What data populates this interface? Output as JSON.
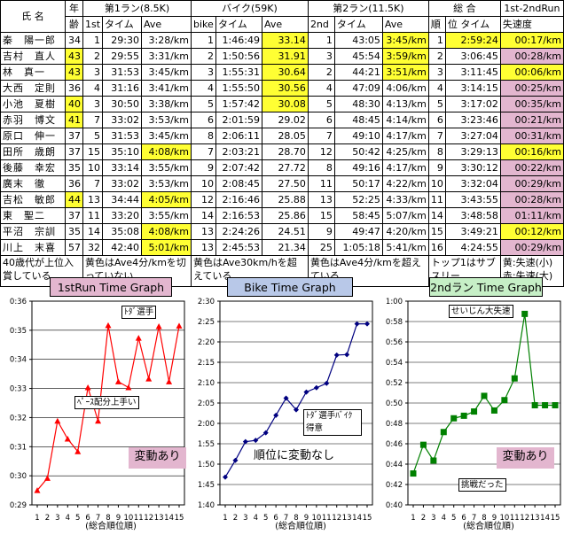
{
  "table": {
    "head1": {
      "name": "氏 名",
      "age1": "年",
      "run1": "第1ラン(8.5K)",
      "bike": "バイク(59K)",
      "run2": "第2ラン(11.5K)",
      "total": "総 合",
      "diff": "1st-2ndRun"
    },
    "head2": {
      "age2": "齢",
      "r1rank": "1st",
      "r1time": "タイム",
      "r1ave": "Ave",
      "brank": "bike",
      "btime": "タイム",
      "bave": "Ave",
      "r2rank": "2nd",
      "r2time": "タイム",
      "r2ave": "Ave",
      "trank": "順",
      "ttime": "位 タイム",
      "dlabel": "失速度"
    },
    "rows": [
      {
        "name": "秦　陽一郎",
        "age": "34",
        "r1rank": "1",
        "r1time": "29:30",
        "r1ave": "3:28/km",
        "brank": "1",
        "btime": "1:46:49",
        "bave": "33.14",
        "r2rank": "1",
        "r2time": "43:05",
        "r2ave": "3:45/km",
        "trank": "1",
        "ttime": "2:59:24",
        "diff": "00:17/km"
      },
      {
        "name": "吉村　直人",
        "age": "43",
        "r1rank": "2",
        "r1time": "29:55",
        "r1ave": "3:31/km",
        "brank": "2",
        "btime": "1:50:56",
        "bave": "31.91",
        "r2rank": "3",
        "r2time": "45:54",
        "r2ave": "3:59/km",
        "trank": "2",
        "ttime": "3:06:45",
        "diff": "00:28/km"
      },
      {
        "name": "林　真一",
        "age": "43",
        "r1rank": "3",
        "r1time": "31:53",
        "r1ave": "3:45/km",
        "brank": "3",
        "btime": "1:55:31",
        "bave": "30.64",
        "r2rank": "2",
        "r2time": "44:21",
        "r2ave": "3:51/km",
        "trank": "3",
        "ttime": "3:11:45",
        "diff": "00:06/km"
      },
      {
        "name": "大西　定則",
        "age": "36",
        "r1rank": "4",
        "r1time": "31:16",
        "r1ave": "3:41/km",
        "brank": "4",
        "btime": "1:55:50",
        "bave": "30.56",
        "r2rank": "4",
        "r2time": "47:09",
        "r2ave": "4:06/km",
        "trank": "4",
        "ttime": "3:14:15",
        "diff": "00:25/km"
      },
      {
        "name": "小池　夏樹",
        "age": "40",
        "r1rank": "3",
        "r1time": "30:50",
        "r1ave": "3:38/km",
        "brank": "5",
        "btime": "1:57:42",
        "bave": "30.08",
        "r2rank": "5",
        "r2time": "48:30",
        "r2ave": "4:13/km",
        "trank": "5",
        "ttime": "3:17:02",
        "diff": "00:35/km"
      },
      {
        "name": "赤羽　博文",
        "age": "41",
        "r1rank": "7",
        "r1time": "33:02",
        "r1ave": "3:53/km",
        "brank": "6",
        "btime": "2:01:59",
        "bave": "29.02",
        "r2rank": "6",
        "r2time": "48:45",
        "r2ave": "4:14/km",
        "trank": "6",
        "ttime": "3:23:46",
        "diff": "00:21/km"
      },
      {
        "name": "原口　伸一",
        "age": "37",
        "r1rank": "5",
        "r1time": "31:53",
        "r1ave": "3:45/km",
        "brank": "8",
        "btime": "2:06:11",
        "bave": "28.05",
        "r2rank": "7",
        "r2time": "49:10",
        "r2ave": "4:17/km",
        "trank": "7",
        "ttime": "3:27:04",
        "diff": "00:31/km"
      },
      {
        "name": "田所　歳朗",
        "age": "37",
        "r1rank": "15",
        "r1time": "35:10",
        "r1ave": "4:08/km",
        "brank": "7",
        "btime": "2:03:21",
        "bave": "28.70",
        "r2rank": "12",
        "r2time": "50:42",
        "r2ave": "4:25/km",
        "trank": "8",
        "ttime": "3:29:13",
        "diff": "00:16/km"
      },
      {
        "name": "後藤　幸宏",
        "age": "35",
        "r1rank": "10",
        "r1time": "33:14",
        "r1ave": "3:55/km",
        "brank": "9",
        "btime": "2:07:42",
        "bave": "27.72",
        "r2rank": "8",
        "r2time": "49:16",
        "r2ave": "4:17/km",
        "trank": "9",
        "ttime": "3:30:12",
        "diff": "00:22/km"
      },
      {
        "name": "廣末　徹",
        "age": "36",
        "r1rank": "7",
        "r1time": "33:02",
        "r1ave": "3:53/km",
        "brank": "10",
        "btime": "2:08:45",
        "bave": "27.50",
        "r2rank": "11",
        "r2time": "50:17",
        "r2ave": "4:22/km",
        "trank": "10",
        "ttime": "3:32:04",
        "diff": "00:29/km"
      },
      {
        "name": "吉松　敏郎",
        "age": "44",
        "r1rank": "13",
        "r1time": "34:44",
        "r1ave": "4:05/km",
        "brank": "12",
        "btime": "2:16:46",
        "bave": "25.88",
        "r2rank": "13",
        "r2time": "52:25",
        "r2ave": "4:33/km",
        "trank": "11",
        "ttime": "3:43:55",
        "diff": "00:28/km"
      },
      {
        "name": "東　聖二",
        "age": "37",
        "r1rank": "11",
        "r1time": "33:20",
        "r1ave": "3:55/km",
        "brank": "14",
        "btime": "2:16:53",
        "bave": "25.86",
        "r2rank": "15",
        "r2time": "58:45",
        "r2ave": "5:07/km",
        "trank": "14",
        "ttime": "3:48:58",
        "diff": "01:11/km"
      },
      {
        "name": "平沼　宗訓",
        "age": "35",
        "r1rank": "14",
        "r1time": "35:08",
        "r1ave": "4:08/km",
        "brank": "13",
        "btime": "2:24:26",
        "bave": "24.51",
        "r2rank": "9",
        "r2time": "49:47",
        "r2ave": "4:20/km",
        "trank": "15",
        "ttime": "3:49:21",
        "diff": "00:12/km"
      },
      {
        "name": "川上　末喜",
        "age": "57",
        "r1rank": "32",
        "r1time": "42:40",
        "r1ave": "5:01/km",
        "brank": "13",
        "btime": "2:45:53",
        "bave": "21.34",
        "r2rank": "25",
        "r2time": "1:05:18",
        "r2ave": "5:41/km",
        "trank": "16",
        "ttime": "4:24:55",
        "diff": "00:29/km"
      }
    ],
    "notes": {
      "n1": "40歳代が上位入賞している",
      "n2": "黄色はAve4分/kmを切っていない",
      "n3": "黄色はAve30km/hを超えている",
      "n4": "黄色はAve4分/kmを超えている",
      "n5": "トップ1はサブスリー",
      "n6": "黄:失速(小)",
      "n7": "赤:失速(大)"
    }
  },
  "colors": {
    "yellow": "#ffff33",
    "pink": "#e3b6cf",
    "run1": "#ff0000",
    "bike": "#000080",
    "run2": "#008000"
  },
  "chart_data": [
    {
      "type": "line",
      "title": "1stRun Time Graph",
      "xlabel": "(総合順位順)",
      "x": [
        1,
        2,
        3,
        4,
        5,
        6,
        7,
        8,
        9,
        10,
        11,
        12,
        13,
        14,
        15
      ],
      "xticks": [
        "1",
        "2",
        "3",
        "4",
        "5",
        "6",
        "7",
        "8",
        "9",
        "10",
        "11",
        "12",
        "13",
        "14",
        "15"
      ],
      "yticks": [
        "0:29",
        "0:30",
        "0:31",
        "0:32",
        "0:33",
        "0:34",
        "0:35",
        "0:36"
      ],
      "ylim_sec": [
        1740,
        2160
      ],
      "values_sec": [
        1770,
        1795,
        1913,
        1876,
        1850,
        1982,
        1913,
        2110,
        1994,
        1982,
        2084,
        2000,
        2108,
        1994,
        2109
      ],
      "color": "#ff0000",
      "marker": "triangle",
      "annotations": {
        "a1": "ﾄﾀﾞ選手",
        "a2": "ﾍﾟｰｽ配分上手い",
        "a3": "変動あり"
      }
    },
    {
      "type": "line",
      "title": "Bike Time Graph",
      "xlabel": "(総合順位順)",
      "x": [
        1,
        2,
        3,
        4,
        5,
        6,
        7,
        8,
        9,
        10,
        11,
        12,
        13,
        14,
        15
      ],
      "xticks": [
        "1",
        "2",
        "3",
        "4",
        "5",
        "6",
        "7",
        "8",
        "9",
        "10",
        "11",
        "12",
        "13",
        "14",
        "15"
      ],
      "yticks": [
        "1:40",
        "1:45",
        "1:50",
        "1:55",
        "2:00",
        "2:05",
        "2:10",
        "2:15",
        "2:20",
        "2:25",
        "2:30"
      ],
      "ylim_sec": [
        6000,
        9000
      ],
      "values_sec": [
        6409,
        6656,
        6931,
        6950,
        7062,
        7319,
        7571,
        7401,
        7662,
        7725,
        7790,
        8206,
        8213,
        8666,
        8666
      ],
      "color": "#000080",
      "marker": "diamond",
      "annotations": {
        "a1": "ﾄﾀﾞ選手ﾊﾞｲｸ得意",
        "a2": "順位に変動なし"
      }
    },
    {
      "type": "line",
      "title": "2ndラン Time Graph",
      "xlabel": "(総合順位順)",
      "x": [
        1,
        2,
        3,
        4,
        5,
        6,
        7,
        8,
        9,
        10,
        11,
        12,
        13,
        14,
        15
      ],
      "xticks": [
        "1",
        "2",
        "3",
        "4",
        "5",
        "6",
        "7",
        "8",
        "9",
        "10",
        "11",
        "12",
        "13",
        "14",
        "15"
      ],
      "yticks": [
        "0:40",
        "0:42",
        "0:44",
        "0:46",
        "0:48",
        "0:50",
        "0:52",
        "0:54",
        "0:56",
        "0:58",
        "1:00"
      ],
      "ylim_sec": [
        2400,
        3600
      ],
      "values_sec": [
        2585,
        2754,
        2661,
        2829,
        2910,
        2925,
        2950,
        3042,
        2956,
        3017,
        3145,
        3525,
        2987,
        2987,
        2987
      ],
      "color": "#008000",
      "marker": "square",
      "annotations": {
        "a1": "せいじん大失速",
        "a2": "挑戦だった",
        "a3": "変動あり"
      }
    }
  ]
}
